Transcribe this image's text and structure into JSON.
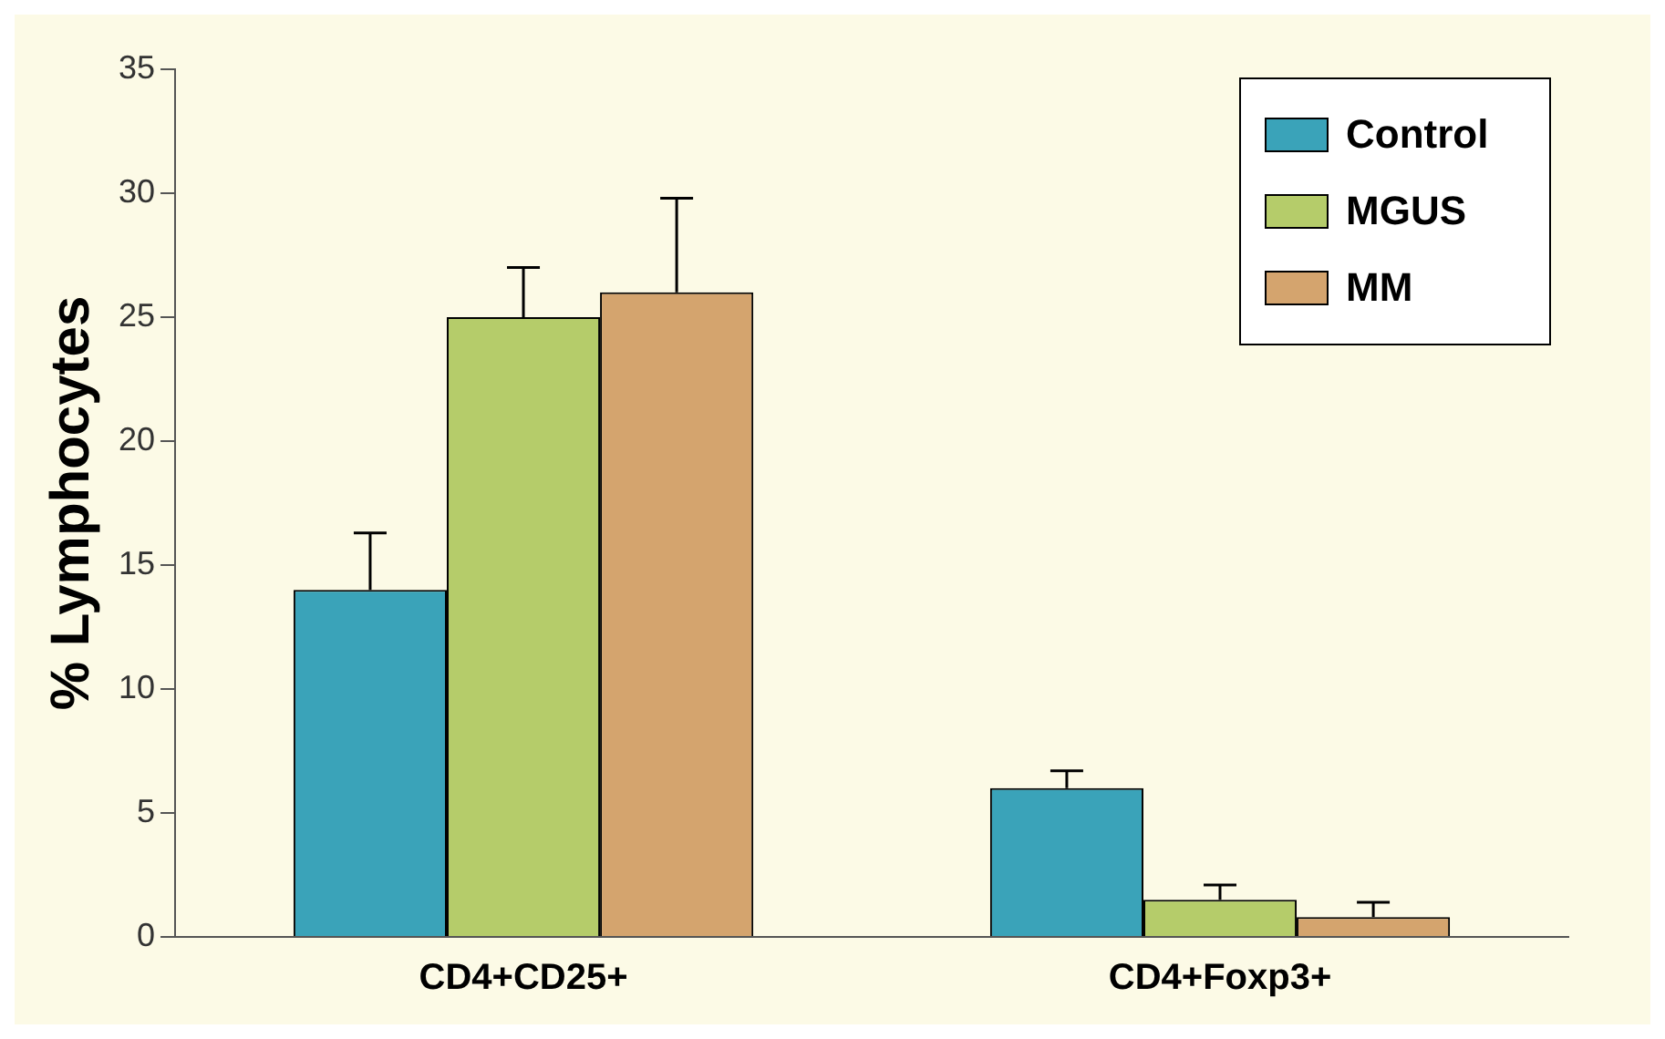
{
  "chart_data": {
    "type": "bar",
    "ylabel": "% Lymphocytes",
    "categories": [
      "CD4+CD25+",
      "CD4+Foxp3+"
    ],
    "series": [
      {
        "name": "Control",
        "color": "#3aa3b9",
        "values": [
          14,
          6
        ],
        "errors": [
          [
            14,
            16.3
          ],
          [
            6,
            6.7
          ]
        ]
      },
      {
        "name": "MGUS",
        "color": "#b5cc6a",
        "values": [
          25,
          1.5
        ],
        "errors": [
          [
            25,
            27
          ],
          [
            1.5,
            2.1
          ]
        ]
      },
      {
        "name": "MM",
        "color": "#d4a46e",
        "values": [
          26,
          0.8
        ],
        "errors": [
          [
            26,
            29.8
          ],
          [
            0.8,
            1.4
          ]
        ]
      }
    ],
    "ylim": [
      0,
      35
    ],
    "yticks": [
      0,
      5,
      10,
      15,
      20,
      25,
      30,
      35
    ],
    "grid": false,
    "legend": "top right"
  }
}
